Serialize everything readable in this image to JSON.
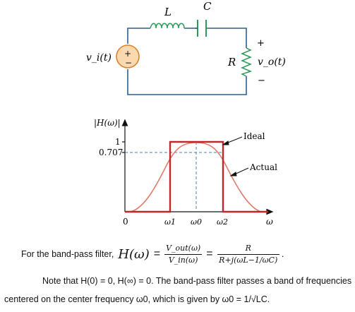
{
  "circuit": {
    "inductor_label": "L",
    "capacitor_label": "C",
    "resistor_label": "R",
    "source_label": "v_i(t)",
    "source_plus": "+",
    "source_minus": "−",
    "output_label": "v_o(t)",
    "output_plus": "+",
    "output_minus": "−",
    "colors": {
      "wire": "#2b5f8e",
      "capacitor": "#2e9a5a",
      "source_fill": "#fbd9b0",
      "source_edge": "#d9822b"
    }
  },
  "graph": {
    "y_axis_label": "|H(ω)|",
    "y_tick_1": "1",
    "y_tick_0707": "0.707",
    "x_origin": "0",
    "x_ticks": [
      "ω1",
      "ω0",
      "ω2"
    ],
    "x_axis_label": "ω",
    "ideal_label": "Ideal",
    "actual_label": "Actual",
    "colors": {
      "ideal": "#c0272d",
      "actual": "#e07b6a",
      "guide": "#4a7fb5"
    }
  },
  "text": {
    "formula_intro": "For the band-pass filter,",
    "formula_lhs": "H(ω)",
    "formula_num1": "V_out(ω)",
    "formula_den1": "V_in(ω)",
    "formula_num2": "R",
    "formula_den2": "R+j(ωL−1/ωC)",
    "note_line1": "Note that H(0) = 0, H(∞) = 0. The band-pass filter passes a band of frequencies",
    "note_line2": "centered on the center frequency ω0, which is given by  ω0  =  1/√LC."
  }
}
